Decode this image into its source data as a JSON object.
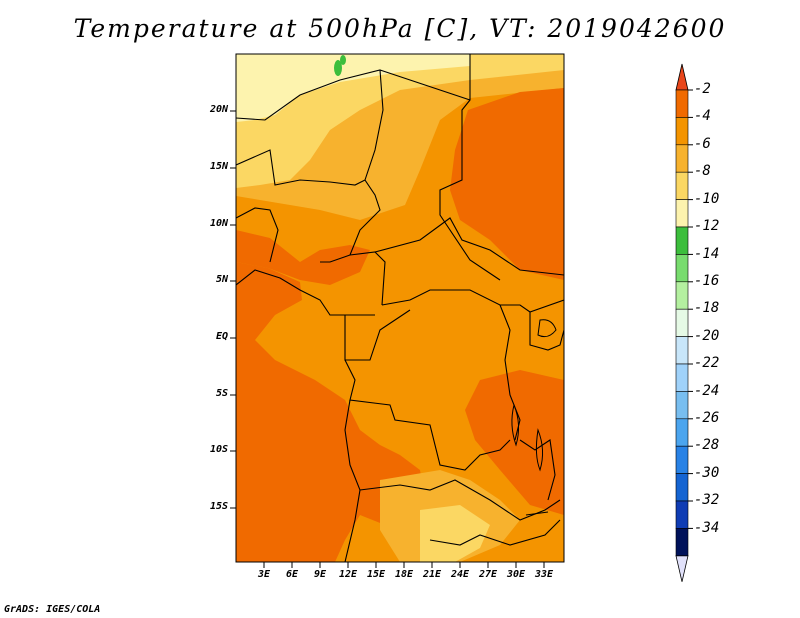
{
  "title": "Temperature at 500hPa [C], VT: 2019042600",
  "credit": "GrADS: IGES/COLA",
  "lat_ticks": [
    "20N",
    "15N",
    "10N",
    "5N",
    "EQ",
    "5S",
    "10S",
    "15S"
  ],
  "lon_ticks": [
    "3E",
    "6E",
    "9E",
    "12E",
    "15E",
    "18E",
    "21E",
    "24E",
    "27E",
    "30E",
    "33E"
  ],
  "colorbar": {
    "labels": [
      "-2",
      "-4",
      "-6",
      "-8",
      "-10",
      "-12",
      "-14",
      "-16",
      "-18",
      "-20",
      "-22",
      "-24",
      "-26",
      "-28",
      "-30",
      "-32",
      "-34"
    ],
    "colors": [
      "#e8461b",
      "#f06a00",
      "#f49400",
      "#f7b22e",
      "#fbd763",
      "#fdf3ae",
      "#3cbe3c",
      "#78dc6e",
      "#b4f0a0",
      "#e6fae6",
      "#c8e6fa",
      "#a0d2fa",
      "#78bef0",
      "#4ba5ef",
      "#2882e6",
      "#1464d2",
      "#0f3cb4",
      "#00125a",
      "#e1e1fa"
    ]
  },
  "colors": {
    "very_warm": "#f06a00",
    "warm": "#f49400",
    "mid": "#f7b22e",
    "cool": "#fbd763",
    "coolest": "#fdf3ae",
    "green": "#3cbe3c"
  }
}
